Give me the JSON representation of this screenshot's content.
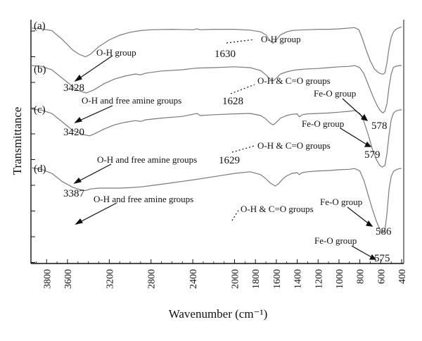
{
  "chart_data": {
    "type": "line",
    "xlabel": "Wavenumber (cm⁻¹)",
    "ylabel": "Transmittance",
    "xlim": [
      3950,
      380
    ],
    "x_reversed": true,
    "xticks": [
      3800,
      3600,
      3200,
      2800,
      2400,
      2000,
      1800,
      1600,
      1400,
      1200,
      1000,
      800,
      600,
      400
    ],
    "grid": false,
    "legend": "none",
    "line_color": "#7a7a7a",
    "series": [
      {
        "label": "(a)",
        "points": [
          [
            3950,
            0.08
          ],
          [
            3850,
            0.1
          ],
          [
            3750,
            0.14
          ],
          [
            3650,
            0.35
          ],
          [
            3550,
            0.6
          ],
          [
            3490,
            0.7
          ],
          [
            3428,
            0.76
          ],
          [
            3380,
            0.7
          ],
          [
            3300,
            0.52
          ],
          [
            3200,
            0.36
          ],
          [
            3100,
            0.25
          ],
          [
            3000,
            0.18
          ],
          [
            2900,
            0.14
          ],
          [
            2800,
            0.12
          ],
          [
            2600,
            0.11
          ],
          [
            2400,
            0.12
          ],
          [
            2360,
            0.1
          ],
          [
            2330,
            0.12
          ],
          [
            2200,
            0.11
          ],
          [
            2000,
            0.11
          ],
          [
            1850,
            0.13
          ],
          [
            1750,
            0.17
          ],
          [
            1700,
            0.24
          ],
          [
            1660,
            0.38
          ],
          [
            1630,
            0.44
          ],
          [
            1600,
            0.36
          ],
          [
            1560,
            0.24
          ],
          [
            1500,
            0.17
          ],
          [
            1450,
            0.14
          ],
          [
            1400,
            0.13
          ],
          [
            1300,
            0.12
          ],
          [
            1200,
            0.11
          ],
          [
            1100,
            0.11
          ],
          [
            1000,
            0.1
          ],
          [
            900,
            0.08
          ],
          [
            850,
            0.07
          ],
          [
            810,
            0.12
          ],
          [
            780,
            0.3
          ],
          [
            740,
            0.6
          ],
          [
            700,
            0.86
          ],
          [
            660,
            1.05
          ],
          [
            620,
            1.14
          ],
          [
            600,
            1.16
          ],
          [
            578,
            1.17
          ],
          [
            560,
            1.14
          ],
          [
            540,
            0.9
          ],
          [
            520,
            0.55
          ],
          [
            500,
            0.3
          ],
          [
            480,
            0.18
          ],
          [
            460,
            0.12
          ],
          [
            440,
            0.09
          ],
          [
            420,
            0.07
          ],
          [
            400,
            0.05
          ]
        ]
      },
      {
        "label": "(b)",
        "points": [
          [
            3950,
            0.5
          ],
          [
            3850,
            0.52
          ],
          [
            3750,
            0.6
          ],
          [
            3650,
            0.8
          ],
          [
            3550,
            1.0
          ],
          [
            3490,
            1.1
          ],
          [
            3420,
            1.15
          ],
          [
            3350,
            1.08
          ],
          [
            3250,
            0.93
          ],
          [
            3150,
            0.82
          ],
          [
            3050,
            0.75
          ],
          [
            2950,
            0.7
          ],
          [
            2900,
            0.72
          ],
          [
            2850,
            0.68
          ],
          [
            2700,
            0.63
          ],
          [
            2500,
            0.6
          ],
          [
            2400,
            0.57
          ],
          [
            2360,
            0.56
          ],
          [
            2200,
            0.55
          ],
          [
            2000,
            0.53
          ],
          [
            1850,
            0.55
          ],
          [
            1750,
            0.62
          ],
          [
            1700,
            0.72
          ],
          [
            1660,
            0.82
          ],
          [
            1628,
            0.86
          ],
          [
            1600,
            0.8
          ],
          [
            1560,
            0.7
          ],
          [
            1500,
            0.65
          ],
          [
            1450,
            0.62
          ],
          [
            1400,
            0.6
          ],
          [
            1300,
            0.58
          ],
          [
            1200,
            0.57
          ],
          [
            1100,
            0.55
          ],
          [
            1000,
            0.53
          ],
          [
            900,
            0.52
          ],
          [
            850,
            0.5
          ],
          [
            800,
            0.55
          ],
          [
            760,
            0.7
          ],
          [
            720,
            0.95
          ],
          [
            680,
            1.2
          ],
          [
            640,
            1.42
          ],
          [
            610,
            1.55
          ],
          [
            590,
            1.6
          ],
          [
            579,
            1.62
          ],
          [
            560,
            1.58
          ],
          [
            540,
            1.4
          ],
          [
            520,
            1.0
          ],
          [
            500,
            0.7
          ],
          [
            480,
            0.55
          ],
          [
            460,
            0.52
          ],
          [
            440,
            0.51
          ],
          [
            420,
            0.5
          ],
          [
            400,
            0.5
          ]
        ]
      },
      {
        "label": "(c)",
        "points": [
          [
            3950,
            0.95
          ],
          [
            3850,
            0.97
          ],
          [
            3750,
            1.05
          ],
          [
            3650,
            1.25
          ],
          [
            3550,
            1.45
          ],
          [
            3450,
            1.55
          ],
          [
            3387,
            1.58
          ],
          [
            3330,
            1.52
          ],
          [
            3250,
            1.42
          ],
          [
            3150,
            1.32
          ],
          [
            3050,
            1.26
          ],
          [
            2950,
            1.22
          ],
          [
            2900,
            1.24
          ],
          [
            2850,
            1.2
          ],
          [
            2700,
            1.16
          ],
          [
            2500,
            1.12
          ],
          [
            2360,
            1.05
          ],
          [
            2330,
            1.1
          ],
          [
            2200,
            1.08
          ],
          [
            2000,
            1.06
          ],
          [
            1850,
            1.05
          ],
          [
            1750,
            1.1
          ],
          [
            1700,
            1.18
          ],
          [
            1660,
            1.28
          ],
          [
            1629,
            1.32
          ],
          [
            1600,
            1.26
          ],
          [
            1560,
            1.16
          ],
          [
            1500,
            1.1
          ],
          [
            1450,
            1.07
          ],
          [
            1400,
            1.06
          ],
          [
            1380,
            1.13
          ],
          [
            1350,
            1.08
          ],
          [
            1300,
            1.06
          ],
          [
            1200,
            1.05
          ],
          [
            1100,
            1.04
          ],
          [
            1000,
            1.02
          ],
          [
            900,
            1.0
          ],
          [
            850,
            0.98
          ],
          [
            800,
            1.05
          ],
          [
            760,
            1.25
          ],
          [
            720,
            1.55
          ],
          [
            680,
            1.9
          ],
          [
            640,
            2.15
          ],
          [
            610,
            2.28
          ],
          [
            586,
            2.32
          ],
          [
            560,
            2.28
          ],
          [
            540,
            2.0
          ],
          [
            520,
            1.55
          ],
          [
            500,
            1.2
          ],
          [
            480,
            1.05
          ],
          [
            460,
            1.0
          ],
          [
            440,
            0.98
          ],
          [
            420,
            0.97
          ],
          [
            400,
            0.96
          ]
        ]
      },
      {
        "label": "(d)",
        "points": [
          [
            3950,
            1.48
          ],
          [
            3850,
            1.52
          ],
          [
            3750,
            1.62
          ],
          [
            3650,
            1.82
          ],
          [
            3550,
            1.96
          ],
          [
            3480,
            2.02
          ],
          [
            3430,
            2.04
          ],
          [
            3380,
            2.0
          ],
          [
            3300,
            1.98
          ],
          [
            3200,
            1.98
          ],
          [
            3100,
            1.98
          ],
          [
            3000,
            1.97
          ],
          [
            2900,
            1.95
          ],
          [
            2800,
            1.92
          ],
          [
            2600,
            1.85
          ],
          [
            2400,
            1.78
          ],
          [
            2200,
            1.7
          ],
          [
            2000,
            1.62
          ],
          [
            1850,
            1.58
          ],
          [
            1750,
            1.65
          ],
          [
            1700,
            1.75
          ],
          [
            1660,
            1.85
          ],
          [
            1610,
            1.93
          ],
          [
            1580,
            1.88
          ],
          [
            1540,
            1.76
          ],
          [
            1500,
            1.68
          ],
          [
            1450,
            1.62
          ],
          [
            1400,
            1.6
          ],
          [
            1380,
            1.65
          ],
          [
            1350,
            1.6
          ],
          [
            1300,
            1.58
          ],
          [
            1200,
            1.56
          ],
          [
            1100,
            1.55
          ],
          [
            1000,
            1.53
          ],
          [
            900,
            1.52
          ],
          [
            850,
            1.5
          ],
          [
            800,
            1.56
          ],
          [
            760,
            1.8
          ],
          [
            720,
            2.15
          ],
          [
            680,
            2.5
          ],
          [
            640,
            2.8
          ],
          [
            610,
            2.98
          ],
          [
            590,
            3.05
          ],
          [
            575,
            3.07
          ],
          [
            560,
            3.02
          ],
          [
            540,
            2.6
          ],
          [
            520,
            2.0
          ],
          [
            500,
            1.7
          ],
          [
            480,
            1.58
          ],
          [
            460,
            1.54
          ],
          [
            440,
            1.52
          ],
          [
            420,
            1.5
          ],
          [
            400,
            1.5
          ]
        ]
      }
    ],
    "annotations": [
      {
        "text": "(a)"
      },
      {
        "text": "(b)"
      },
      {
        "text": "(c)"
      },
      {
        "text": "(d)"
      },
      {
        "text": "O-H group"
      },
      {
        "text": "3428"
      },
      {
        "text": "O-H group"
      },
      {
        "text": "1630"
      },
      {
        "text": "O-H and free amine groups"
      },
      {
        "text": "3420"
      },
      {
        "text": "O-H & C=O groups"
      },
      {
        "text": "1628"
      },
      {
        "text": "Fe-O group"
      },
      {
        "text": "578"
      },
      {
        "text": "O-H and free amine groups"
      },
      {
        "text": "3387"
      },
      {
        "text": "O-H & C=O groups"
      },
      {
        "text": "1629"
      },
      {
        "text": "Fe-O group"
      },
      {
        "text": "579"
      },
      {
        "text": "O-H and free amine groups"
      },
      {
        "text": "O-H & C=O groups"
      },
      {
        "text": "Fe-O group"
      },
      {
        "text": "586"
      },
      {
        "text": "Fe-O group"
      },
      {
        "text": "575"
      }
    ]
  }
}
